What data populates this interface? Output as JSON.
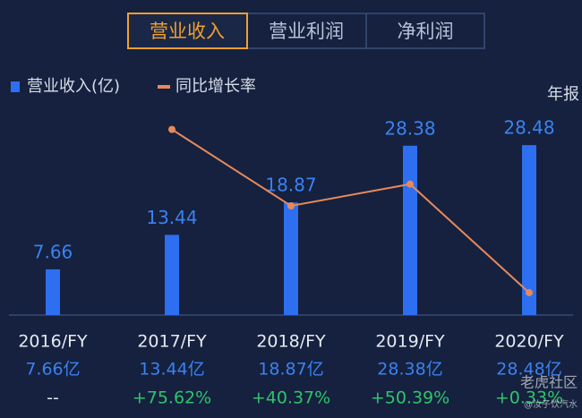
{
  "tabs": [
    "营业收入",
    "营业利润",
    "净利润"
  ],
  "period": "年报",
  "watermark": {
    "brand": "老虎社区",
    "user": "@汝子饮汽水"
  },
  "chart_data": {
    "type": "bar",
    "categories": [
      "2016/FY",
      "2017/FY",
      "2018/FY",
      "2019/FY",
      "2020/FY"
    ],
    "series": [
      {
        "name": "营业收入(亿)",
        "type": "bar",
        "color": "#2d6ff0",
        "values": [
          7.66,
          13.44,
          18.87,
          28.38,
          28.48
        ],
        "value_labels": [
          "7.66亿",
          "13.44亿",
          "18.87亿",
          "28.38亿",
          "28.48亿"
        ]
      },
      {
        "name": "同比增长率",
        "type": "line",
        "axis": "y2",
        "color": "#e8895a",
        "values": [
          null,
          75.62,
          40.37,
          50.39,
          0.33
        ],
        "value_labels": [
          "--",
          "+75.62%",
          "+40.37%",
          "+50.39%",
          "+0.33%"
        ]
      }
    ],
    "ylim": [
      0,
      30
    ],
    "y2lim": [
      -10,
      80
    ]
  }
}
